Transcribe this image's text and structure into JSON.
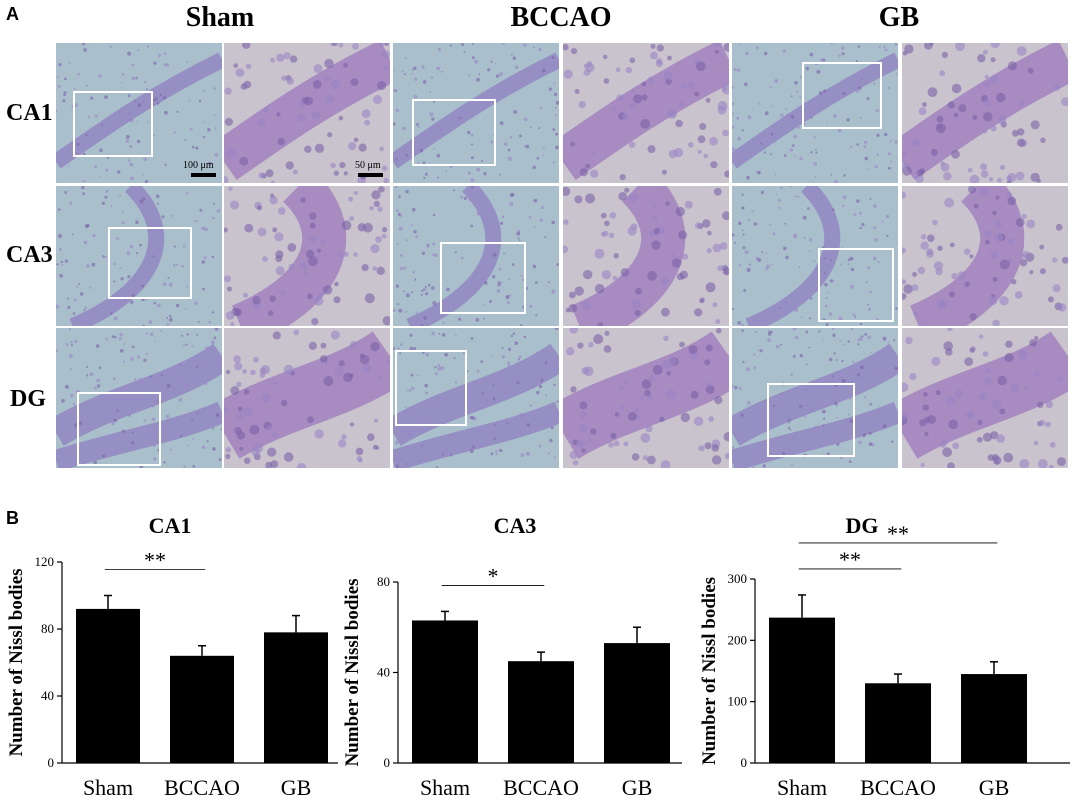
{
  "panel_a": {
    "letter": "A",
    "groups": [
      "Sham",
      "BCCAO",
      "GB"
    ],
    "rows": [
      "CA1",
      "CA3",
      "DG"
    ],
    "scale_low": "100 μm",
    "scale_high": "50 μm"
  },
  "panel_b": {
    "letter": "B"
  },
  "chart_data": [
    {
      "type": "bar",
      "title": "CA1",
      "ylabel": "Number of Nissl bodies",
      "categories": [
        "Sham",
        "BCCAO",
        "GB"
      ],
      "values": [
        92,
        64,
        78
      ],
      "errors": [
        8,
        6,
        10
      ],
      "ylim": [
        0,
        120
      ],
      "yticks": [
        0,
        40,
        80,
        120
      ],
      "significance": [
        {
          "from": "Sham",
          "to": "BCCAO",
          "label": "**"
        }
      ],
      "colors": {
        "bar": "#000000"
      }
    },
    {
      "type": "bar",
      "title": "CA3",
      "ylabel": "Number of Nissl bodies",
      "categories": [
        "Sham",
        "BCCAO",
        "GB"
      ],
      "values": [
        63,
        45,
        53
      ],
      "errors": [
        4,
        4,
        7
      ],
      "ylim": [
        0,
        80
      ],
      "yticks": [
        0,
        40,
        80
      ],
      "significance": [
        {
          "from": "Sham",
          "to": "BCCAO",
          "label": "*"
        }
      ],
      "colors": {
        "bar": "#000000"
      }
    },
    {
      "type": "bar",
      "title": "DG",
      "ylabel": "Number of Nissl bodies",
      "categories": [
        "Sham",
        "BCCAO",
        "GB"
      ],
      "values": [
        237,
        130,
        145
      ],
      "errors": [
        37,
        15,
        20
      ],
      "ylim": [
        0,
        300
      ],
      "yticks": [
        0,
        100,
        200,
        300
      ],
      "significance": [
        {
          "from": "Sham",
          "to": "BCCAO",
          "label": "**"
        },
        {
          "from": "Sham",
          "to": "GB",
          "label": "**"
        }
      ],
      "colors": {
        "bar": "#000000"
      }
    }
  ]
}
